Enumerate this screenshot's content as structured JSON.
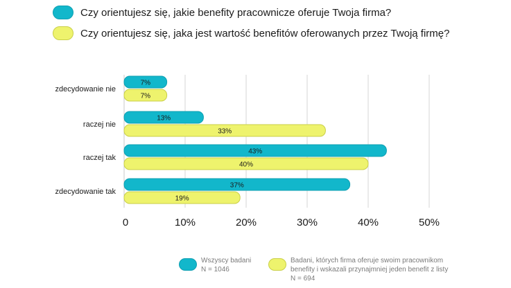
{
  "questions": [
    {
      "text": "Czy orientujesz się, jakie benefity pracownicze oferuje Twoja firma?",
      "color": "#12b7cb"
    },
    {
      "text": "Czy orientujesz się, jaka jest wartość benefitów oferowanych przez Twoją firmę?",
      "color": "#eef36d"
    }
  ],
  "chart_data": {
    "type": "bar",
    "orientation": "horizontal",
    "categories": [
      "zdecydowanie nie",
      "raczej nie",
      "raczej tak",
      "zdecydowanie tak"
    ],
    "series": [
      {
        "values": [
          7,
          13,
          43,
          37
        ],
        "labels": [
          "7%",
          "13%",
          "43%",
          "37%"
        ],
        "color": "#12b7cb"
      },
      {
        "values": [
          7,
          33,
          40,
          19
        ],
        "labels": [
          "7%",
          "33%",
          "40%",
          "19%"
        ],
        "color": "#eef36d"
      }
    ],
    "xlim": [
      0,
      50
    ],
    "xticks": [
      0,
      10,
      20,
      30,
      40,
      50
    ],
    "xtick_labels": [
      "0",
      "10%",
      "20%",
      "30%",
      "40%",
      "50%"
    ],
    "grid": true,
    "legend_placement": "bottom"
  },
  "legend": [
    {
      "lines": [
        "Wszyscy badani",
        "N = 1046"
      ],
      "color": "#12b7cb"
    },
    {
      "lines": [
        "Badani, których firma oferuje swoim pracownikom",
        "benefity i wskazali przynajmniej jeden benefit z listy",
        "N = 694"
      ],
      "color": "#eef36d"
    }
  ]
}
